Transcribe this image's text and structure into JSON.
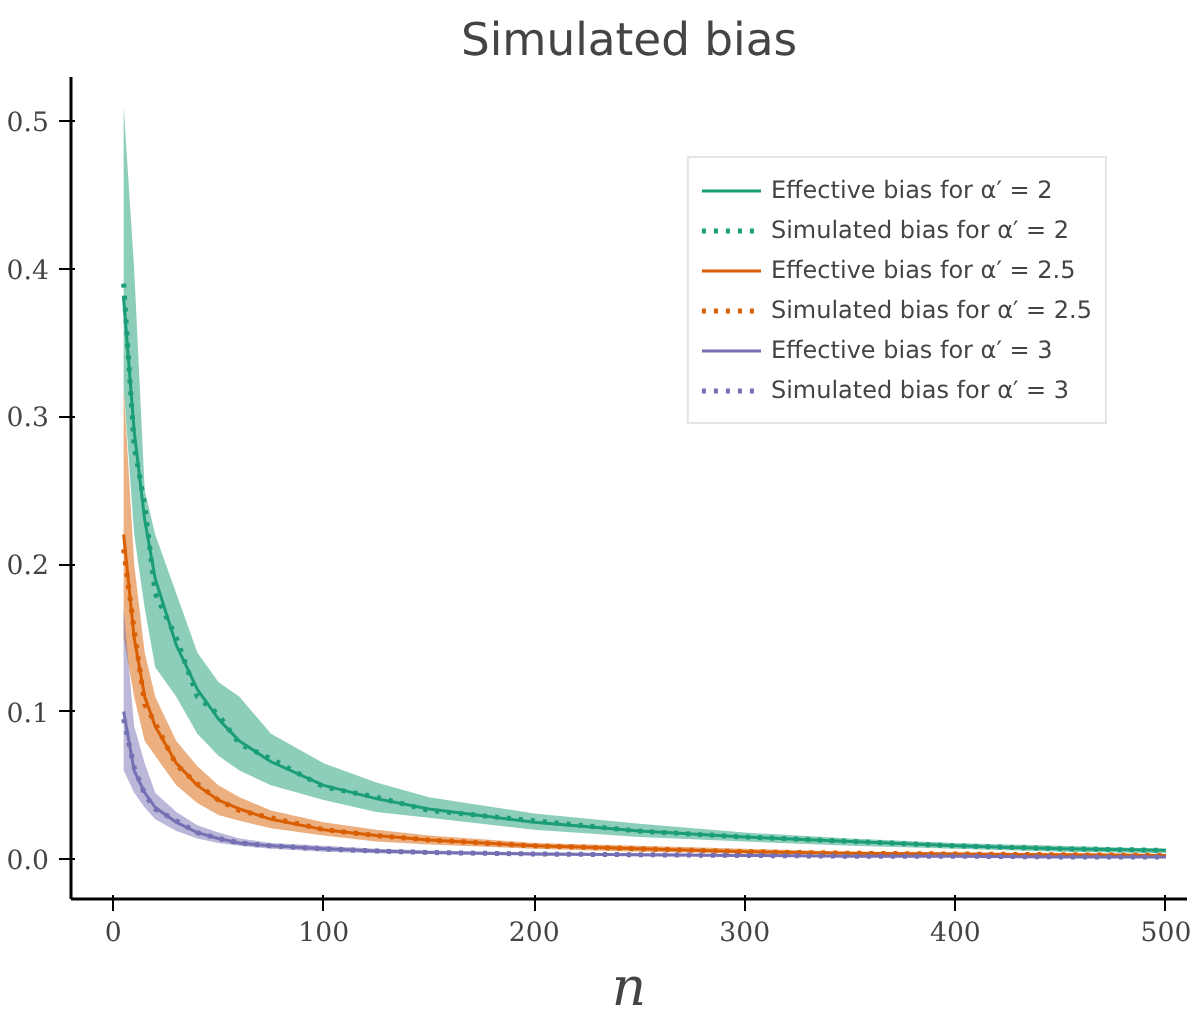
{
  "chart_data": {
    "type": "line",
    "title": "Simulated bias",
    "xlabel": "n",
    "x": [
      5,
      10,
      15,
      20,
      30,
      40,
      50,
      60,
      75,
      100,
      125,
      150,
      200,
      250,
      300,
      350,
      400,
      450,
      500
    ],
    "xlim": [
      -20,
      510
    ],
    "ylim": [
      -0.027,
      0.53
    ],
    "xticks": [
      0,
      100,
      200,
      300,
      400,
      500
    ],
    "yticks": [
      {
        "value": 0,
        "label": "0.0"
      },
      {
        "value": 0.1,
        "label": "0.1"
      },
      {
        "value": 0.2,
        "label": "0.2"
      },
      {
        "value": 0.3,
        "label": "0.3"
      },
      {
        "value": 0.4,
        "label": "0.4"
      },
      {
        "value": 0.5,
        "label": "0.5"
      }
    ],
    "grid": false,
    "legend": "top right",
    "marker": "none",
    "series": [
      {
        "name": "Effective bias for α′ = 2",
        "color": "#1b9e77",
        "line_style": "solid",
        "values": [
          0.38,
          0.29,
          0.23,
          0.19,
          0.145,
          0.115,
          0.095,
          0.08,
          0.066,
          0.05,
          0.041,
          0.034,
          0.025,
          0.019,
          0.015,
          0.012,
          0.009,
          0.007,
          0.006
        ],
        "lower": [
          0.32,
          0.22,
          0.17,
          0.13,
          0.11,
          0.085,
          0.07,
          0.06,
          0.05,
          0.04,
          0.032,
          0.028,
          0.02,
          0.015,
          0.012,
          0.009,
          0.007,
          0.005,
          0.004
        ],
        "upper": [
          0.51,
          0.4,
          0.25,
          0.22,
          0.18,
          0.14,
          0.12,
          0.11,
          0.085,
          0.065,
          0.052,
          0.042,
          0.031,
          0.024,
          0.018,
          0.014,
          0.011,
          0.009,
          0.007
        ]
      },
      {
        "name": "Simulated bias for α′ = 2",
        "color": "#1b9e77",
        "line_style": "dotted",
        "values": [
          0.39,
          0.28,
          0.24,
          0.18,
          0.15,
          0.11,
          0.098,
          0.078,
          0.068,
          0.049,
          0.042,
          0.033,
          0.026,
          0.019,
          0.015,
          0.012,
          0.009,
          0.007,
          0.006
        ]
      },
      {
        "name": "Effective bias for α′ = 2.5",
        "color": "#d95f02",
        "line_style": "solid",
        "values": [
          0.22,
          0.15,
          0.11,
          0.09,
          0.065,
          0.05,
          0.04,
          0.034,
          0.027,
          0.02,
          0.016,
          0.013,
          0.009,
          0.007,
          0.005,
          0.004,
          0.0035,
          0.003,
          0.0025
        ],
        "lower": [
          0.15,
          0.11,
          0.08,
          0.07,
          0.05,
          0.038,
          0.03,
          0.026,
          0.021,
          0.016,
          0.012,
          0.01,
          0.007,
          0.005,
          0.004,
          0.003,
          0.0025,
          0.002,
          0.0015
        ],
        "upper": [
          0.32,
          0.2,
          0.14,
          0.11,
          0.08,
          0.063,
          0.05,
          0.042,
          0.033,
          0.025,
          0.02,
          0.016,
          0.011,
          0.009,
          0.007,
          0.005,
          0.0045,
          0.004,
          0.0035
        ]
      },
      {
        "name": "Simulated bias for α′ = 2.5",
        "color": "#d95f02",
        "line_style": "dotted",
        "values": [
          0.21,
          0.155,
          0.105,
          0.092,
          0.064,
          0.051,
          0.04,
          0.033,
          0.028,
          0.02,
          0.016,
          0.013,
          0.009,
          0.007,
          0.005,
          0.004,
          0.0035,
          0.003,
          0.0025
        ]
      },
      {
        "name": "Effective bias for α′ = 3",
        "color": "#7570b3",
        "line_style": "solid",
        "values": [
          0.1,
          0.06,
          0.045,
          0.035,
          0.025,
          0.018,
          0.014,
          0.011,
          0.009,
          0.007,
          0.0055,
          0.0045,
          0.0035,
          0.003,
          0.0025,
          0.002,
          0.002,
          0.0015,
          0.0015
        ],
        "lower": [
          0.06,
          0.045,
          0.035,
          0.027,
          0.019,
          0.014,
          0.011,
          0.009,
          0.007,
          0.005,
          0.004,
          0.0035,
          0.0025,
          0.002,
          0.0018,
          0.0015,
          0.0014,
          0.001,
          0.001
        ],
        "upper": [
          0.17,
          0.09,
          0.065,
          0.045,
          0.032,
          0.023,
          0.018,
          0.014,
          0.011,
          0.009,
          0.007,
          0.0058,
          0.0045,
          0.004,
          0.0032,
          0.0027,
          0.0025,
          0.002,
          0.002
        ]
      },
      {
        "name": "Simulated bias for α′ = 3",
        "color": "#7570b3",
        "line_style": "dotted",
        "values": [
          0.095,
          0.062,
          0.044,
          0.034,
          0.026,
          0.018,
          0.014,
          0.011,
          0.009,
          0.007,
          0.0055,
          0.0045,
          0.0035,
          0.003,
          0.0025,
          0.002,
          0.002,
          0.0015,
          0.0015
        ]
      }
    ]
  }
}
